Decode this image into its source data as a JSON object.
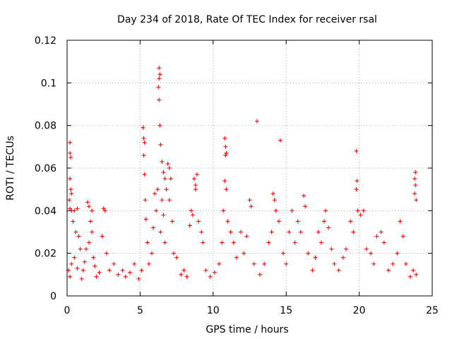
{
  "chart_data": {
    "type": "scatter",
    "title": "Day 234 of 2018, Rate Of TEC Index for receiver rsal",
    "xlabel": "GPS time / hours",
    "ylabel": "ROTI / TECUs",
    "xlim": [
      0,
      25
    ],
    "ylim": [
      0,
      0.12
    ],
    "x_ticks": [
      "0",
      "5",
      "10",
      "15",
      "20",
      "25"
    ],
    "x_tick_values": [
      0,
      5,
      10,
      15,
      20,
      25
    ],
    "y_ticks": [
      "0",
      "0.02",
      "0.04",
      "0.06",
      "0.08",
      "0.1",
      "0.12"
    ],
    "y_tick_values": [
      0,
      0.02,
      0.04,
      0.06,
      0.08,
      0.1,
      0.12
    ],
    "grid": true,
    "marker": "+",
    "color": "#ff0000",
    "series": [
      {
        "name": "ROTI",
        "points": [
          [
            0.1,
            0.012
          ],
          [
            0.2,
            0.009
          ],
          [
            0.3,
            0.015
          ],
          [
            0.2,
            0.072
          ],
          [
            0.2,
            0.067
          ],
          [
            0.25,
            0.065
          ],
          [
            0.2,
            0.055
          ],
          [
            0.25,
            0.05
          ],
          [
            0.3,
            0.048
          ],
          [
            0.15,
            0.045
          ],
          [
            0.2,
            0.041
          ],
          [
            0.3,
            0.04
          ],
          [
            0.4,
            0.035
          ],
          [
            0.5,
            0.04
          ],
          [
            0.6,
            0.03
          ],
          [
            0.7,
            0.041
          ],
          [
            0.8,
            0.028
          ],
          [
            0.9,
            0.022
          ],
          [
            0.5,
            0.018
          ],
          [
            0.7,
            0.013
          ],
          [
            1.0,
            0.008
          ],
          [
            1.1,
            0.012
          ],
          [
            1.2,
            0.016
          ],
          [
            1.3,
            0.022
          ],
          [
            1.4,
            0.044
          ],
          [
            1.5,
            0.042
          ],
          [
            1.6,
            0.035
          ],
          [
            1.7,
            0.03
          ],
          [
            1.5,
            0.025
          ],
          [
            1.8,
            0.018
          ],
          [
            1.7,
            0.04
          ],
          [
            1.9,
            0.014
          ],
          [
            2.0,
            0.009
          ],
          [
            2.2,
            0.011
          ],
          [
            2.4,
            0.028
          ],
          [
            2.5,
            0.041
          ],
          [
            2.6,
            0.04
          ],
          [
            2.7,
            0.02
          ],
          [
            2.9,
            0.012
          ],
          [
            3.2,
            0.015
          ],
          [
            3.5,
            0.01
          ],
          [
            3.8,
            0.012
          ],
          [
            4.0,
            0.009
          ],
          [
            4.3,
            0.011
          ],
          [
            4.6,
            0.015
          ],
          [
            4.9,
            0.008
          ],
          [
            5.1,
            0.012
          ],
          [
            5.2,
            0.079
          ],
          [
            5.25,
            0.074
          ],
          [
            5.3,
            0.072
          ],
          [
            5.25,
            0.066
          ],
          [
            5.3,
            0.057
          ],
          [
            5.35,
            0.045
          ],
          [
            5.4,
            0.036
          ],
          [
            5.5,
            0.025
          ],
          [
            5.6,
            0.015
          ],
          [
            5.8,
            0.02
          ],
          [
            5.9,
            0.032
          ],
          [
            6.0,
            0.048
          ],
          [
            6.1,
            0.04
          ],
          [
            6.2,
            0.05
          ],
          [
            6.3,
            0.107
          ],
          [
            6.35,
            0.104
          ],
          [
            6.3,
            0.102
          ],
          [
            6.25,
            0.098
          ],
          [
            6.3,
            0.092
          ],
          [
            6.35,
            0.08
          ],
          [
            6.4,
            0.071
          ],
          [
            6.5,
            0.063
          ],
          [
            6.6,
            0.058
          ],
          [
            6.7,
            0.055
          ],
          [
            6.5,
            0.045
          ],
          [
            6.6,
            0.038
          ],
          [
            6.8,
            0.05
          ],
          [
            6.9,
            0.062
          ],
          [
            7.0,
            0.06
          ],
          [
            7.1,
            0.055
          ],
          [
            7.0,
            0.045
          ],
          [
            7.2,
            0.035
          ],
          [
            6.4,
            0.03
          ],
          [
            6.7,
            0.025
          ],
          [
            7.3,
            0.02
          ],
          [
            7.5,
            0.018
          ],
          [
            7.8,
            0.01
          ],
          [
            8.0,
            0.012
          ],
          [
            8.2,
            0.009
          ],
          [
            8.4,
            0.033
          ],
          [
            8.5,
            0.04
          ],
          [
            8.6,
            0.038
          ],
          [
            8.7,
            0.055
          ],
          [
            8.8,
            0.052
          ],
          [
            8.9,
            0.057
          ],
          [
            8.8,
            0.05
          ],
          [
            9.0,
            0.035
          ],
          [
            9.2,
            0.03
          ],
          [
            9.3,
            0.025
          ],
          [
            9.5,
            0.012
          ],
          [
            9.8,
            0.009
          ],
          [
            10.1,
            0.011
          ],
          [
            10.4,
            0.015
          ],
          [
            10.6,
            0.025
          ],
          [
            10.8,
            0.074
          ],
          [
            10.85,
            0.07
          ],
          [
            10.9,
            0.067
          ],
          [
            10.85,
            0.066
          ],
          [
            10.8,
            0.054
          ],
          [
            10.9,
            0.05
          ],
          [
            10.7,
            0.04
          ],
          [
            11.0,
            0.035
          ],
          [
            11.2,
            0.03
          ],
          [
            11.4,
            0.025
          ],
          [
            11.6,
            0.018
          ],
          [
            11.9,
            0.03
          ],
          [
            12.1,
            0.02
          ],
          [
            12.3,
            0.028
          ],
          [
            12.5,
            0.045
          ],
          [
            12.6,
            0.042
          ],
          [
            12.8,
            0.015
          ],
          [
            13.0,
            0.082
          ],
          [
            13.2,
            0.01
          ],
          [
            13.5,
            0.015
          ],
          [
            13.8,
            0.025
          ],
          [
            14.0,
            0.03
          ],
          [
            14.1,
            0.048
          ],
          [
            14.2,
            0.045
          ],
          [
            14.3,
            0.04
          ],
          [
            14.5,
            0.035
          ],
          [
            14.6,
            0.073
          ],
          [
            14.8,
            0.02
          ],
          [
            15.0,
            0.015
          ],
          [
            15.2,
            0.03
          ],
          [
            15.4,
            0.04
          ],
          [
            15.6,
            0.025
          ],
          [
            15.8,
            0.035
          ],
          [
            16.0,
            0.03
          ],
          [
            16.2,
            0.047
          ],
          [
            16.3,
            0.042
          ],
          [
            16.5,
            0.02
          ],
          [
            16.8,
            0.012
          ],
          [
            17.0,
            0.018
          ],
          [
            17.2,
            0.03
          ],
          [
            17.4,
            0.025
          ],
          [
            17.6,
            0.035
          ],
          [
            17.7,
            0.04
          ],
          [
            17.9,
            0.032
          ],
          [
            18.1,
            0.022
          ],
          [
            18.3,
            0.015
          ],
          [
            18.6,
            0.012
          ],
          [
            18.9,
            0.018
          ],
          [
            19.1,
            0.022
          ],
          [
            19.4,
            0.035
          ],
          [
            19.6,
            0.03
          ],
          [
            19.8,
            0.068
          ],
          [
            19.85,
            0.054
          ],
          [
            19.8,
            0.05
          ],
          [
            19.9,
            0.04
          ],
          [
            20.1,
            0.038
          ],
          [
            20.3,
            0.04
          ],
          [
            20.5,
            0.022
          ],
          [
            20.8,
            0.02
          ],
          [
            21.0,
            0.015
          ],
          [
            21.2,
            0.028
          ],
          [
            21.5,
            0.03
          ],
          [
            21.7,
            0.025
          ],
          [
            22.0,
            0.012
          ],
          [
            22.3,
            0.015
          ],
          [
            22.6,
            0.02
          ],
          [
            22.8,
            0.035
          ],
          [
            23.0,
            0.028
          ],
          [
            23.2,
            0.015
          ],
          [
            23.5,
            0.009
          ],
          [
            23.7,
            0.012
          ],
          [
            23.85,
            0.058
          ],
          [
            23.8,
            0.055
          ],
          [
            23.85,
            0.052
          ],
          [
            23.8,
            0.048
          ],
          [
            23.9,
            0.045
          ],
          [
            23.9,
            0.01
          ]
        ]
      }
    ]
  }
}
